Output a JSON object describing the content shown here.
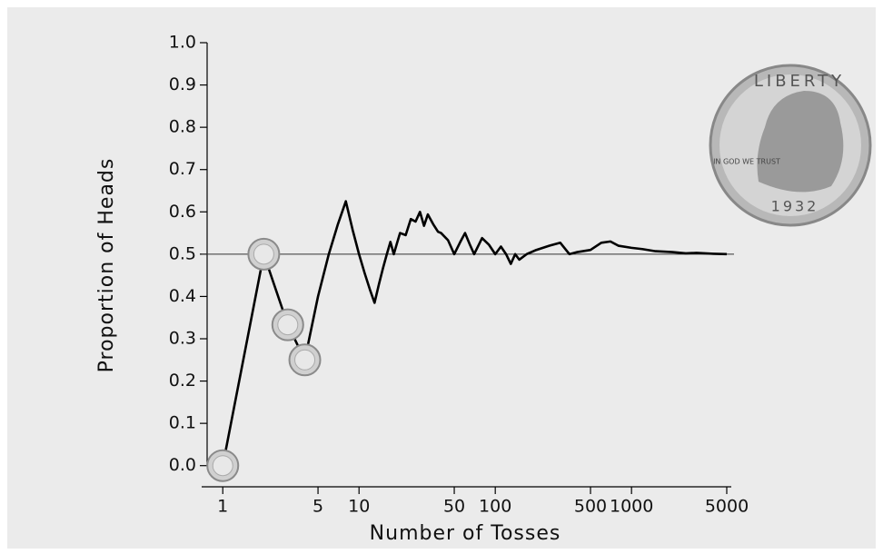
{
  "chart_data": {
    "type": "line",
    "xlabel": "Number of Tosses",
    "ylabel": "Proportion of Heads",
    "x": [
      1,
      2,
      3,
      4,
      5,
      6,
      7,
      8,
      9,
      10,
      11,
      12,
      13,
      14,
      15,
      16,
      17,
      18,
      19,
      20,
      22,
      24,
      26,
      28,
      30,
      32,
      35,
      38,
      40,
      45,
      50,
      55,
      60,
      65,
      70,
      80,
      90,
      100,
      110,
      120,
      130,
      140,
      150,
      170,
      200,
      250,
      300,
      350,
      400,
      500,
      600,
      700,
      800,
      1000,
      1200,
      1500,
      2000,
      2500,
      3000,
      4000,
      5000
    ],
    "values": [
      0,
      0.5,
      0.333,
      0.25,
      0.4,
      0.5,
      0.571,
      0.625,
      0.556,
      0.5,
      0.455,
      0.417,
      0.385,
      0.429,
      0.467,
      0.5,
      0.529,
      0.5,
      0.526,
      0.55,
      0.545,
      0.583,
      0.577,
      0.6,
      0.567,
      0.594,
      0.571,
      0.553,
      0.55,
      0.533,
      0.5,
      0.527,
      0.55,
      0.523,
      0.5,
      0.538,
      0.522,
      0.5,
      0.518,
      0.5,
      0.477,
      0.5,
      0.487,
      0.5,
      0.51,
      0.52,
      0.527,
      0.5,
      0.505,
      0.51,
      0.527,
      0.53,
      0.52,
      0.515,
      0.512,
      0.507,
      0.505,
      0.502,
      0.503,
      0.501,
      0.5
    ],
    "color": "#000000",
    "reference_line": 0.5,
    "xscale": "log",
    "xlim": [
      0.7,
      5000
    ],
    "xticks": [
      1,
      5,
      10,
      50,
      100,
      500,
      1000,
      5000
    ],
    "ylim": [
      -0.05,
      1.0
    ],
    "yticks": [
      {
        "value": 0,
        "label": "0.0"
      },
      0.1,
      0.2,
      0.3,
      0.4,
      0.5,
      0.6,
      0.7,
      0.8,
      0.9,
      {
        "value": 1,
        "label": "1.0"
      }
    ],
    "annotations": [
      "LIBERTY",
      "IN GOD WE TRUST",
      "1932"
    ]
  }
}
